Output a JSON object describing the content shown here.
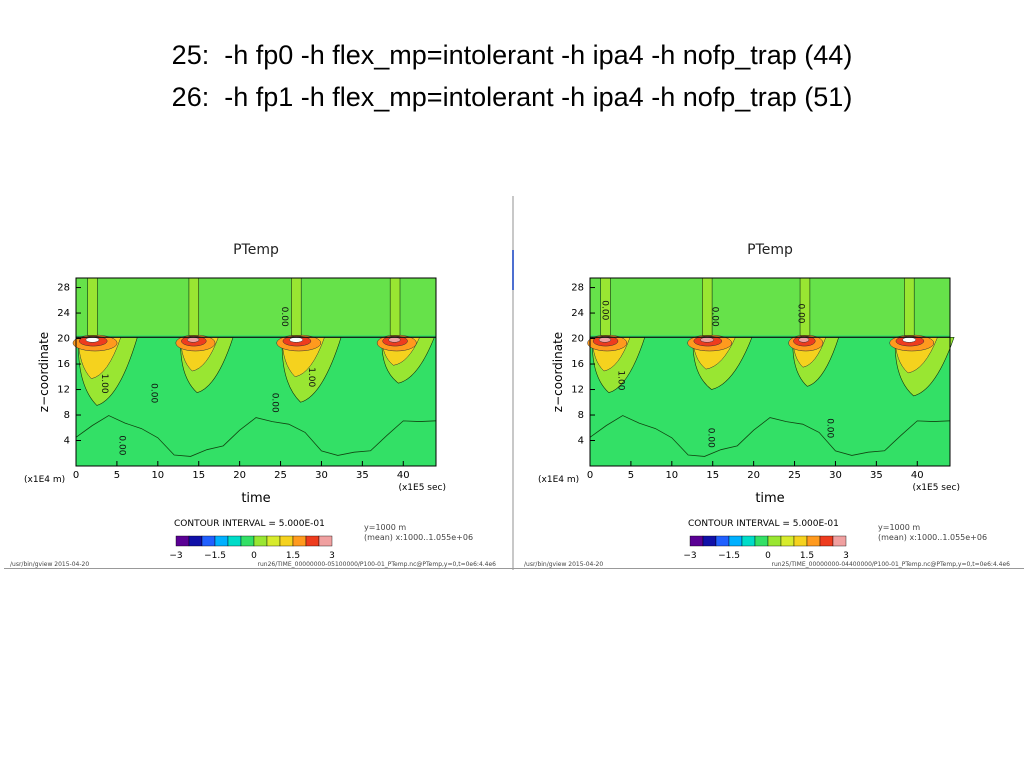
{
  "slide": {
    "title_lines": [
      "25:  -h fp0 -h flex_mp=intolerant -h ipa4 -h nofp_trap (44)",
      "26:  -h fp1 -h flex_mp=intolerant -h ipa4 -h nofp_trap (51)"
    ]
  },
  "colors": {
    "background_level": "#33e066",
    "level_palette": [
      "#5a0094",
      "#1010a8",
      "#2060ff",
      "#00b0ff",
      "#00dcc8",
      "#33e066",
      "#99e632",
      "#d7eb2d",
      "#f5d21e",
      "#ff9a1e",
      "#ee3c1e",
      "#f0a0a0"
    ]
  },
  "chart_data": [
    {
      "type": "heatmap",
      "title": "PTemp",
      "xlabel": "time",
      "ylabel": "z−coordinate",
      "x_unit_label": "(x1E5 sec)",
      "y_unit_label": "(x1E4 m)",
      "xlim": [
        0,
        44
      ],
      "ylim": [
        0,
        29.5
      ],
      "x_ticks": [
        "0",
        "5",
        "10",
        "15",
        "20",
        "25",
        "30",
        "35",
        "40"
      ],
      "y_ticks": [
        "4",
        "8",
        "12",
        "16",
        "20",
        "24",
        "28"
      ],
      "contour_interval_label": "CONTOUR INTERVAL = 5.000E-01",
      "colorbar_ticks": [
        "−3",
        "−1.5",
        "0",
        "1.5",
        "3"
      ],
      "info_lines": [
        "y=1000 m",
        "(mean) x:1000..1.055e+06"
      ],
      "footer_left": "/usr/bin/gview   2015-04-20",
      "footer_right": "run26/TIME_00000000-05100000/P100-01_PTemp.nc@PTemp,y=0,t=0e6:4.4e6",
      "contour_labels": [
        {
          "text": "1.00",
          "x": 3.2,
          "y": 14.5
        },
        {
          "text": "0.00",
          "x": 9.2,
          "y": 13.0
        },
        {
          "text": "0.00",
          "x": 5.3,
          "y": 4.8
        },
        {
          "text": "0.00",
          "x": 25.2,
          "y": 25.0
        },
        {
          "text": "1.00",
          "x": 28.5,
          "y": 15.5
        },
        {
          "text": "0.00",
          "x": 24.0,
          "y": 11.5
        }
      ],
      "events": [
        {
          "t": 0.3,
          "peak": 3,
          "depth": 10.5,
          "width": 4.5
        },
        {
          "t": 12.8,
          "peak": 2.5,
          "depth": 8.5,
          "width": 4.0
        },
        {
          "t": 25.2,
          "peak": 3,
          "depth": 10.0,
          "width": 4.5
        },
        {
          "t": 37.4,
          "peak": 2.5,
          "depth": 7.0,
          "width": 4.0
        }
      ]
    },
    {
      "type": "heatmap",
      "title": "PTemp",
      "xlabel": "time",
      "ylabel": "z−coordinate",
      "x_unit_label": "(x1E5 sec)",
      "y_unit_label": "(x1E4 m)",
      "xlim": [
        0,
        44
      ],
      "ylim": [
        0,
        29.5
      ],
      "x_ticks": [
        "0",
        "5",
        "10",
        "15",
        "20",
        "25",
        "30",
        "35",
        "40"
      ],
      "y_ticks": [
        "4",
        "8",
        "12",
        "16",
        "20",
        "24",
        "28"
      ],
      "contour_interval_label": "CONTOUR INTERVAL = 5.000E-01",
      "colorbar_ticks": [
        "−3",
        "−1.5",
        "0",
        "1.5",
        "3"
      ],
      "info_lines": [
        "y=1000 m",
        "(mean) x:1000..1.055e+06"
      ],
      "footer_left": "/usr/bin/gview   2015-04-20",
      "footer_right": "run25/TIME_00000000-04400000/P100-01_PTemp.nc@PTemp,y=0,t=0e6:4.4e6",
      "contour_labels": [
        {
          "text": "1.00",
          "x": 3.5,
          "y": 15.0
        },
        {
          "text": "0.00",
          "x": 1.5,
          "y": 26.0
        },
        {
          "text": "0.00",
          "x": 15.0,
          "y": 25.0
        },
        {
          "text": "0.00",
          "x": 25.5,
          "y": 25.5
        },
        {
          "text": "0.00",
          "x": 29.0,
          "y": 7.5
        },
        {
          "text": "0.00",
          "x": 14.5,
          "y": 6.0
        }
      ],
      "events": [
        {
          "t": 0.3,
          "peak": 2.5,
          "depth": 8.5,
          "width": 4.0
        },
        {
          "t": 12.6,
          "peak": 2.5,
          "depth": 8.0,
          "width": 4.5
        },
        {
          "t": 24.8,
          "peak": 2.5,
          "depth": 7.5,
          "width": 3.5
        },
        {
          "t": 37.3,
          "peak": 3,
          "depth": 9.0,
          "width": 4.5
        }
      ]
    }
  ]
}
